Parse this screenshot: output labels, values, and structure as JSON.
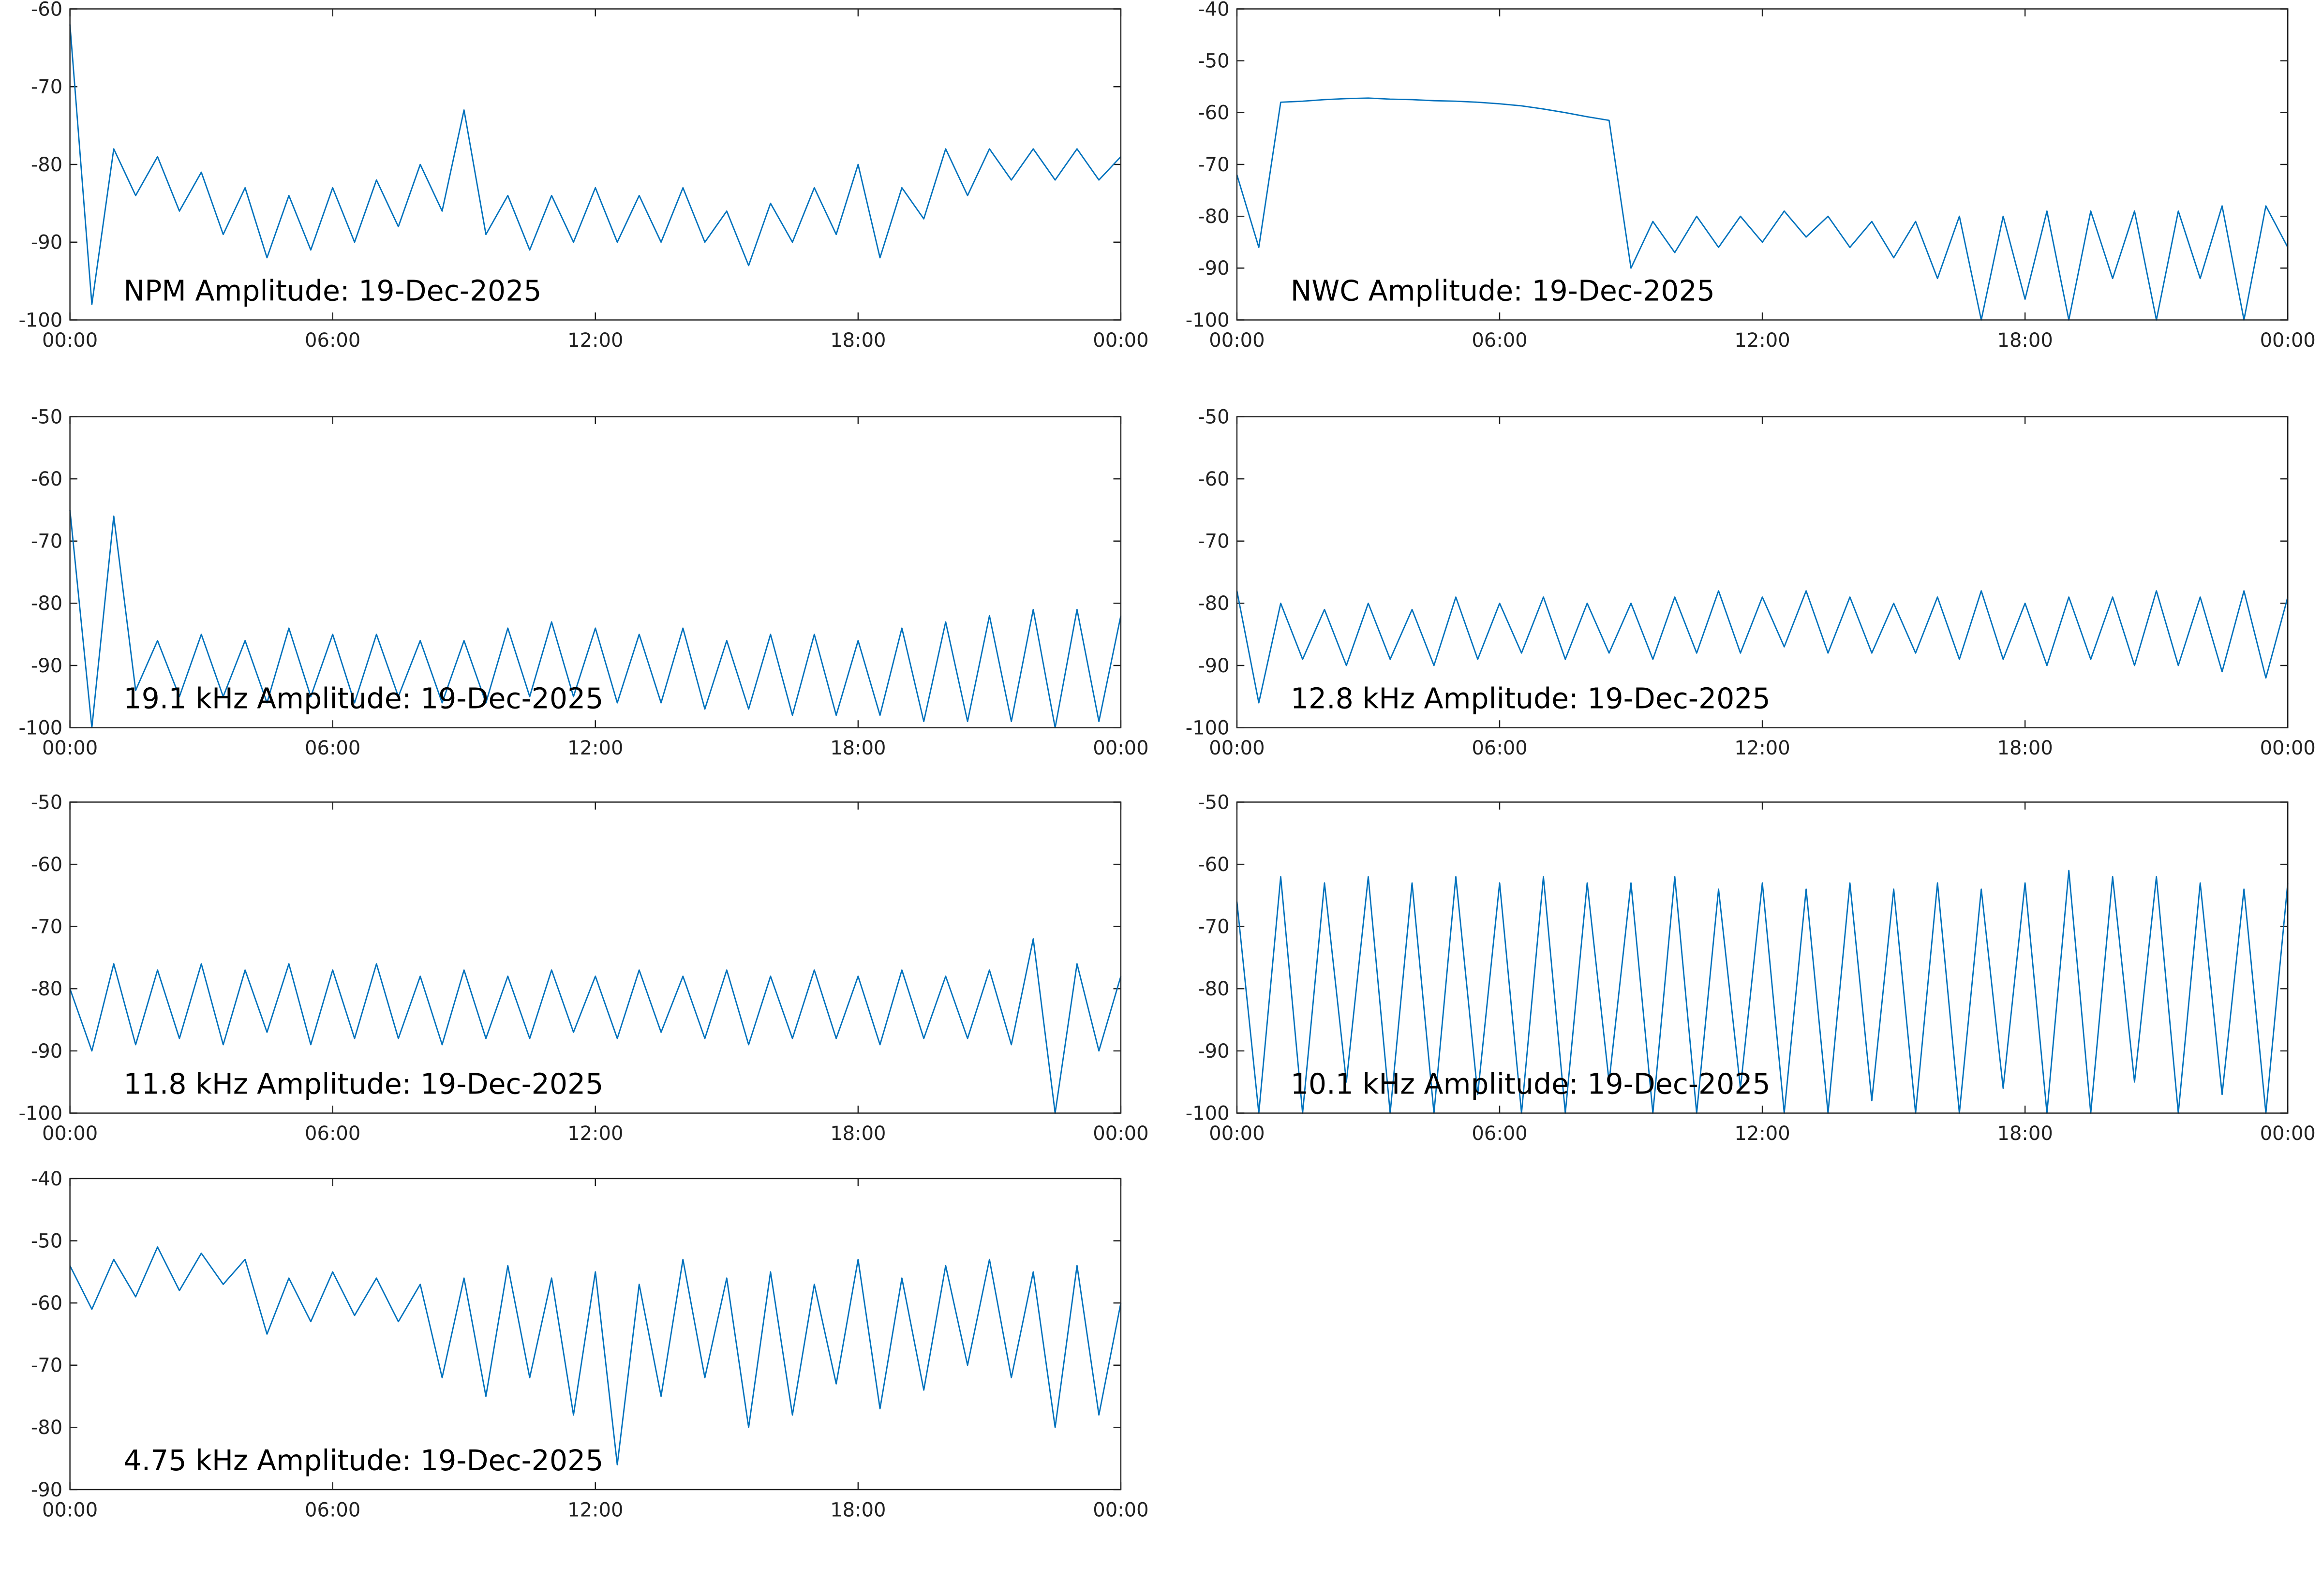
{
  "chart_data": [
    {
      "type": "line",
      "annotation": "NPM Amplitude: 19-Dec-2025",
      "color": "#0072bd",
      "x": [
        0,
        0.5,
        1,
        1.5,
        2,
        2.5,
        3,
        3.5,
        4,
        4.5,
        5,
        5.5,
        6,
        6.5,
        7,
        7.5,
        8,
        8.5,
        9,
        9.5,
        10,
        10.5,
        11,
        11.5,
        12,
        12.5,
        13,
        13.5,
        14,
        14.5,
        15,
        15.5,
        16,
        16.5,
        17,
        17.5,
        18,
        18.5,
        19,
        19.5,
        20,
        20.5,
        21,
        21.5,
        22,
        22.5,
        23,
        23.5,
        24
      ],
      "values": [
        -62,
        -98,
        -78,
        -84,
        -79,
        -86,
        -81,
        -89,
        -83,
        -92,
        -84,
        -91,
        -83,
        -90,
        -82,
        -88,
        -80,
        -86,
        -73,
        -89,
        -84,
        -91,
        -84,
        -90,
        -83,
        -90,
        -84,
        -90,
        -83,
        -90,
        -86,
        -93,
        -85,
        -90,
        -83,
        -89,
        -80,
        -92,
        -83,
        -87,
        -78,
        -84,
        -78,
        -82,
        -78,
        -82,
        -78,
        -82,
        -79
      ],
      "xlim": [
        0,
        24
      ],
      "xticks": [
        {
          "value": 0,
          "label": "00:00"
        },
        {
          "value": 6,
          "label": "06:00"
        },
        {
          "value": 12,
          "label": "12:00"
        },
        {
          "value": 18,
          "label": "18:00"
        },
        {
          "value": 24,
          "label": "00:00"
        }
      ],
      "ylim": [
        -100,
        -60
      ],
      "yticks": [
        -100,
        -90,
        -80,
        -70,
        -60
      ]
    },
    {
      "type": "line",
      "annotation": "NWC Amplitude: 19-Dec-2025",
      "color": "#0072bd",
      "x": [
        0,
        0.5,
        1,
        1.5,
        2,
        2.5,
        3,
        3.5,
        4,
        4.5,
        5,
        5.5,
        6,
        6.5,
        7,
        7.5,
        8,
        8.5,
        9,
        9.5,
        10,
        10.5,
        11,
        11.5,
        12,
        12.5,
        13,
        13.5,
        14,
        14.5,
        15,
        15.5,
        16,
        16.5,
        17,
        17.5,
        18,
        18.5,
        19,
        19.5,
        20,
        20.5,
        21,
        21.5,
        22,
        22.5,
        23,
        23.5,
        24
      ],
      "values": [
        -72,
        -86,
        -58,
        -57.8,
        -57.5,
        -57.3,
        -57.2,
        -57.4,
        -57.5,
        -57.7,
        -57.8,
        -58,
        -58.3,
        -58.7,
        -59.3,
        -60,
        -60.8,
        -61.5,
        -90,
        -81,
        -87,
        -80,
        -86,
        -80,
        -85,
        -79,
        -84,
        -80,
        -86,
        -81,
        -88,
        -81,
        -92,
        -80,
        -100,
        -80,
        -96,
        -79,
        -100,
        -79,
        -92,
        -79,
        -100,
        -79,
        -92,
        -78,
        -100,
        -78,
        -86
      ],
      "xlim": [
        0,
        24
      ],
      "xticks": [
        {
          "value": 0,
          "label": "00:00"
        },
        {
          "value": 6,
          "label": "06:00"
        },
        {
          "value": 12,
          "label": "12:00"
        },
        {
          "value": 18,
          "label": "18:00"
        },
        {
          "value": 24,
          "label": "00:00"
        }
      ],
      "ylim": [
        -100,
        -40
      ],
      "yticks": [
        -100,
        -90,
        -80,
        -70,
        -60,
        -50,
        -40
      ]
    },
    {
      "type": "line",
      "annotation": "19.1 kHz Amplitude: 19-Dec-2025",
      "color": "#0072bd",
      "x": [
        0,
        0.5,
        1,
        1.5,
        2,
        2.5,
        3,
        3.5,
        4,
        4.5,
        5,
        5.5,
        6,
        6.5,
        7,
        7.5,
        8,
        8.5,
        9,
        9.5,
        10,
        10.5,
        11,
        11.5,
        12,
        12.5,
        13,
        13.5,
        14,
        14.5,
        15,
        15.5,
        16,
        16.5,
        17,
        17.5,
        18,
        18.5,
        19,
        19.5,
        20,
        20.5,
        21,
        21.5,
        22,
        22.5,
        23,
        23.5,
        24
      ],
      "values": [
        -65,
        -100,
        -66,
        -94,
        -86,
        -95,
        -85,
        -95,
        -86,
        -96,
        -84,
        -95,
        -85,
        -96,
        -85,
        -95,
        -86,
        -96,
        -86,
        -96,
        -84,
        -95,
        -83,
        -95,
        -84,
        -96,
        -85,
        -96,
        -84,
        -97,
        -86,
        -97,
        -85,
        -98,
        -85,
        -98,
        -86,
        -98,
        -84,
        -99,
        -83,
        -99,
        -82,
        -99,
        -81,
        -100,
        -81,
        -99,
        -82
      ],
      "xlim": [
        0,
        24
      ],
      "xticks": [
        {
          "value": 0,
          "label": "00:00"
        },
        {
          "value": 6,
          "label": "06:00"
        },
        {
          "value": 12,
          "label": "12:00"
        },
        {
          "value": 18,
          "label": "18:00"
        },
        {
          "value": 24,
          "label": "00:00"
        }
      ],
      "ylim": [
        -100,
        -50
      ],
      "yticks": [
        -100,
        -90,
        -80,
        -70,
        -60,
        -50
      ]
    },
    {
      "type": "line",
      "annotation": "12.8 kHz Amplitude: 19-Dec-2025",
      "color": "#0072bd",
      "x": [
        0,
        0.5,
        1,
        1.5,
        2,
        2.5,
        3,
        3.5,
        4,
        4.5,
        5,
        5.5,
        6,
        6.5,
        7,
        7.5,
        8,
        8.5,
        9,
        9.5,
        10,
        10.5,
        11,
        11.5,
        12,
        12.5,
        13,
        13.5,
        14,
        14.5,
        15,
        15.5,
        16,
        16.5,
        17,
        17.5,
        18,
        18.5,
        19,
        19.5,
        20,
        20.5,
        21,
        21.5,
        22,
        22.5,
        23,
        23.5,
        24
      ],
      "values": [
        -78,
        -96,
        -80,
        -89,
        -81,
        -90,
        -80,
        -89,
        -81,
        -90,
        -79,
        -89,
        -80,
        -88,
        -79,
        -89,
        -80,
        -88,
        -80,
        -89,
        -79,
        -88,
        -78,
        -88,
        -79,
        -87,
        -78,
        -88,
        -79,
        -88,
        -80,
        -88,
        -79,
        -89,
        -78,
        -89,
        -80,
        -90,
        -79,
        -89,
        -79,
        -90,
        -78,
        -90,
        -79,
        -91,
        -78,
        -92,
        -79
      ],
      "xlim": [
        0,
        24
      ],
      "xticks": [
        {
          "value": 0,
          "label": "00:00"
        },
        {
          "value": 6,
          "label": "06:00"
        },
        {
          "value": 12,
          "label": "12:00"
        },
        {
          "value": 18,
          "label": "18:00"
        },
        {
          "value": 24,
          "label": "00:00"
        }
      ],
      "ylim": [
        -100,
        -50
      ],
      "yticks": [
        -100,
        -90,
        -80,
        -70,
        -60,
        -50
      ]
    },
    {
      "type": "line",
      "annotation": "11.8 kHz Amplitude: 19-Dec-2025",
      "color": "#0072bd",
      "x": [
        0,
        0.5,
        1,
        1.5,
        2,
        2.5,
        3,
        3.5,
        4,
        4.5,
        5,
        5.5,
        6,
        6.5,
        7,
        7.5,
        8,
        8.5,
        9,
        9.5,
        10,
        10.5,
        11,
        11.5,
        12,
        12.5,
        13,
        13.5,
        14,
        14.5,
        15,
        15.5,
        16,
        16.5,
        17,
        17.5,
        18,
        18.5,
        19,
        19.5,
        20,
        20.5,
        21,
        21.5,
        22,
        22.5,
        23,
        23.5,
        24
      ],
      "values": [
        -80,
        -90,
        -76,
        -89,
        -77,
        -88,
        -76,
        -89,
        -77,
        -87,
        -76,
        -89,
        -77,
        -88,
        -76,
        -88,
        -78,
        -89,
        -77,
        -88,
        -78,
        -88,
        -77,
        -87,
        -78,
        -88,
        -77,
        -87,
        -78,
        -88,
        -77,
        -89,
        -78,
        -88,
        -77,
        -88,
        -78,
        -89,
        -77,
        -88,
        -78,
        -88,
        -77,
        -89,
        -72,
        -100,
        -76,
        -90,
        -78
      ],
      "xlim": [
        0,
        24
      ],
      "xticks": [
        {
          "value": 0,
          "label": "00:00"
        },
        {
          "value": 6,
          "label": "06:00"
        },
        {
          "value": 12,
          "label": "12:00"
        },
        {
          "value": 18,
          "label": "18:00"
        },
        {
          "value": 24,
          "label": "00:00"
        }
      ],
      "ylim": [
        -100,
        -50
      ],
      "yticks": [
        -100,
        -90,
        -80,
        -70,
        -60,
        -50
      ]
    },
    {
      "type": "line",
      "annotation": "10.1 kHz Amplitude: 19-Dec-2025",
      "color": "#0072bd",
      "x": [
        0,
        0.5,
        1,
        1.5,
        2,
        2.5,
        3,
        3.5,
        4,
        4.5,
        5,
        5.5,
        6,
        6.5,
        7,
        7.5,
        8,
        8.5,
        9,
        9.5,
        10,
        10.5,
        11,
        11.5,
        12,
        12.5,
        13,
        13.5,
        14,
        14.5,
        15,
        15.5,
        16,
        16.5,
        17,
        17.5,
        18,
        18.5,
        19,
        19.5,
        20,
        20.5,
        21,
        21.5,
        22,
        22.5,
        23,
        23.5,
        24
      ],
      "values": [
        -66,
        -100,
        -62,
        -100,
        -63,
        -95,
        -62,
        -100,
        -63,
        -100,
        -62,
        -97,
        -63,
        -100,
        -62,
        -100,
        -63,
        -95,
        -63,
        -100,
        -62,
        -100,
        -64,
        -96,
        -63,
        -100,
        -64,
        -100,
        -63,
        -98,
        -64,
        -100,
        -63,
        -100,
        -64,
        -96,
        -63,
        -100,
        -61,
        -100,
        -62,
        -95,
        -62,
        -100,
        -63,
        -97,
        -64,
        -100,
        -63
      ],
      "xlim": [
        0,
        24
      ],
      "xticks": [
        {
          "value": 0,
          "label": "00:00"
        },
        {
          "value": 6,
          "label": "06:00"
        },
        {
          "value": 12,
          "label": "12:00"
        },
        {
          "value": 18,
          "label": "18:00"
        },
        {
          "value": 24,
          "label": "00:00"
        }
      ],
      "ylim": [
        -100,
        -50
      ],
      "yticks": [
        -100,
        -90,
        -80,
        -70,
        -60,
        -50
      ]
    },
    {
      "type": "line",
      "annotation": "4.75 kHz Amplitude: 19-Dec-2025",
      "color": "#0072bd",
      "x": [
        0,
        0.5,
        1,
        1.5,
        2,
        2.5,
        3,
        3.5,
        4,
        4.5,
        5,
        5.5,
        6,
        6.5,
        7,
        7.5,
        8,
        8.5,
        9,
        9.5,
        10,
        10.5,
        11,
        11.5,
        12,
        12.5,
        13,
        13.5,
        14,
        14.5,
        15,
        15.5,
        16,
        16.5,
        17,
        17.5,
        18,
        18.5,
        19,
        19.5,
        20,
        20.5,
        21,
        21.5,
        22,
        22.5,
        23,
        23.5,
        24
      ],
      "values": [
        -54,
        -61,
        -53,
        -59,
        -51,
        -58,
        -52,
        -57,
        -53,
        -65,
        -56,
        -63,
        -55,
        -62,
        -56,
        -63,
        -57,
        -72,
        -56,
        -75,
        -54,
        -72,
        -56,
        -78,
        -55,
        -86,
        -57,
        -75,
        -53,
        -72,
        -56,
        -80,
        -55,
        -78,
        -57,
        -73,
        -53,
        -77,
        -56,
        -74,
        -54,
        -70,
        -53,
        -72,
        -55,
        -80,
        -54,
        -78,
        -60
      ],
      "xlim": [
        0,
        24
      ],
      "xticks": [
        {
          "value": 0,
          "label": "00:00"
        },
        {
          "value": 6,
          "label": "06:00"
        },
        {
          "value": 12,
          "label": "12:00"
        },
        {
          "value": 18,
          "label": "18:00"
        },
        {
          "value": 24,
          "label": "00:00"
        }
      ],
      "ylim": [
        -90,
        -40
      ],
      "yticks": [
        -90,
        -80,
        -70,
        -60,
        -50,
        -40
      ]
    }
  ]
}
